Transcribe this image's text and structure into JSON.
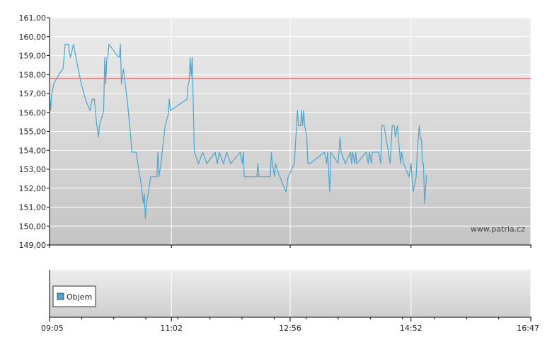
{
  "watermark": "www.patria.cz",
  "volume_legend": "Objem",
  "colors": {
    "price_line": "#4aa6d0",
    "reference_line": "#e05a5a",
    "grid": "#ffffff",
    "axis": "#000000",
    "volume_swatch": "#4aa6d0"
  },
  "chart_data": [
    {
      "type": "line",
      "title": "",
      "xlabel": "",
      "ylabel": "",
      "ylim": [
        149,
        161
      ],
      "y_ticks": [
        "149,00",
        "150,00",
        "151,00",
        "152,00",
        "153,00",
        "154,00",
        "155,00",
        "156,00",
        "157,00",
        "158,00",
        "159,00",
        "160,00",
        "161,00"
      ],
      "x_ticks": [
        "09:05",
        "11:02",
        "12:56",
        "14:52",
        "16:47"
      ],
      "x_range": [
        "09:05",
        "16:47"
      ],
      "grid": true,
      "reference_line": 157.8,
      "series": [
        {
          "points": [
            [
              "09:05",
              157.0
            ],
            [
              "09:06",
              156.1
            ],
            [
              "09:07",
              156.9
            ],
            [
              "09:09",
              157.5
            ],
            [
              "09:14",
              158.0
            ],
            [
              "09:18",
              158.3
            ],
            [
              "09:20",
              159.6
            ],
            [
              "09:23",
              159.6
            ],
            [
              "09:25",
              158.9
            ],
            [
              "09:28",
              159.6
            ],
            [
              "09:30",
              159.0
            ],
            [
              "09:35",
              157.6
            ],
            [
              "09:40",
              156.6
            ],
            [
              "09:44",
              156.1
            ],
            [
              "09:46",
              156.7
            ],
            [
              "09:48",
              156.7
            ],
            [
              "09:50",
              155.5
            ],
            [
              "09:52",
              154.7
            ],
            [
              "09:53",
              155.3
            ],
            [
              "09:57",
              156.1
            ],
            [
              "09:58",
              158.9
            ],
            [
              "09:59",
              157.5
            ],
            [
              "10:00",
              158.9
            ],
            [
              "10:01",
              158.9
            ],
            [
              "10:02",
              159.6
            ],
            [
              "10:06",
              159.3
            ],
            [
              "10:10",
              159.0
            ],
            [
              "10:12",
              158.9
            ],
            [
              "10:13",
              159.6
            ],
            [
              "10:14",
              157.5
            ],
            [
              "10:16",
              158.3
            ],
            [
              "10:20",
              156.4
            ],
            [
              "10:23",
              154.7
            ],
            [
              "10:24",
              153.9
            ],
            [
              "10:28",
              153.9
            ],
            [
              "10:33",
              152.2
            ],
            [
              "10:35",
              151.2
            ],
            [
              "10:36",
              151.7
            ],
            [
              "10:37",
              150.4
            ],
            [
              "10:38",
              151.2
            ],
            [
              "10:40",
              151.8
            ],
            [
              "10:42",
              152.6
            ],
            [
              "10:48",
              152.6
            ],
            [
              "10:49",
              153.9
            ],
            [
              "10:50",
              152.6
            ],
            [
              "10:52",
              153.3
            ],
            [
              "10:54",
              154.3
            ],
            [
              "10:56",
              155.3
            ],
            [
              "10:59",
              155.9
            ],
            [
              "11:00",
              156.7
            ],
            [
              "11:01",
              156.1
            ],
            [
              "11:17",
              156.7
            ],
            [
              "11:18",
              157.5
            ],
            [
              "11:19",
              157.6
            ],
            [
              "11:20",
              158.9
            ],
            [
              "11:21",
              157.9
            ],
            [
              "11:22",
              158.9
            ],
            [
              "11:24",
              153.9
            ],
            [
              "11:28",
              153.3
            ],
            [
              "11:32",
              153.9
            ],
            [
              "11:36",
              153.3
            ],
            [
              "11:44",
              153.9
            ],
            [
              "11:46",
              153.3
            ],
            [
              "11:48",
              153.9
            ],
            [
              "11:52",
              153.3
            ],
            [
              "11:55",
              153.9
            ],
            [
              "11:59",
              153.3
            ],
            [
              "12:08",
              153.9
            ],
            [
              "12:10",
              153.3
            ],
            [
              "12:11",
              153.9
            ],
            [
              "12:12",
              152.6
            ],
            [
              "12:24",
              152.6
            ],
            [
              "12:25",
              153.3
            ],
            [
              "12:26",
              152.6
            ],
            [
              "12:37",
              152.6
            ],
            [
              "12:38",
              153.9
            ],
            [
              "12:39",
              153.3
            ],
            [
              "12:41",
              152.6
            ],
            [
              "12:42",
              153.3
            ],
            [
              "12:44",
              152.9
            ],
            [
              "12:52",
              151.8
            ],
            [
              "12:54",
              152.6
            ],
            [
              "13:00",
              153.3
            ],
            [
              "13:03",
              156.1
            ],
            [
              "13:04",
              155.3
            ],
            [
              "13:06",
              155.3
            ],
            [
              "13:07",
              156.1
            ],
            [
              "13:08",
              155.3
            ],
            [
              "13:09",
              156.1
            ],
            [
              "13:10",
              155.3
            ],
            [
              "13:12",
              154.7
            ],
            [
              "13:13",
              153.3
            ],
            [
              "13:15",
              153.3
            ],
            [
              "13:29",
              153.9
            ],
            [
              "13:31",
              153.3
            ],
            [
              "13:32",
              153.9
            ],
            [
              "13:34",
              151.8
            ],
            [
              "13:35",
              153.9
            ],
            [
              "13:42",
              153.3
            ],
            [
              "13:44",
              154.7
            ],
            [
              "13:45",
              153.9
            ],
            [
              "13:49",
              153.3
            ],
            [
              "13:54",
              153.9
            ],
            [
              "13:55",
              153.3
            ],
            [
              "13:56",
              153.9
            ],
            [
              "13:58",
              153.3
            ],
            [
              "13:59",
              153.9
            ],
            [
              "14:00",
              153.3
            ],
            [
              "14:09",
              153.9
            ],
            [
              "14:11",
              153.3
            ],
            [
              "14:12",
              153.9
            ],
            [
              "14:14",
              153.3
            ],
            [
              "14:15",
              153.9
            ],
            [
              "14:21",
              153.9
            ],
            [
              "14:23",
              153.3
            ],
            [
              "14:24",
              155.3
            ],
            [
              "14:26",
              155.3
            ],
            [
              "14:28",
              154.7
            ],
            [
              "14:32",
              153.3
            ],
            [
              "14:34",
              155.3
            ],
            [
              "14:36",
              155.3
            ],
            [
              "14:37",
              154.7
            ],
            [
              "14:39",
              155.3
            ],
            [
              "14:42",
              153.3
            ],
            [
              "14:43",
              153.9
            ],
            [
              "14:45",
              153.3
            ],
            [
              "14:50",
              152.6
            ],
            [
              "14:52",
              153.3
            ],
            [
              "14:54",
              151.8
            ],
            [
              "14:57",
              152.6
            ],
            [
              "14:58",
              153.9
            ],
            [
              "15:00",
              155.3
            ],
            [
              "15:01",
              154.6
            ],
            [
              "15:02",
              154.6
            ],
            [
              "15:03",
              153.3
            ],
            [
              "15:04",
              153.3
            ],
            [
              "15:05",
              151.2
            ],
            [
              "15:07",
              152.7
            ]
          ]
        }
      ]
    },
    {
      "type": "bar",
      "title": "",
      "xlabel": "",
      "ylabel": "",
      "x_ticks": [
        "09:05",
        "11:02",
        "12:56",
        "14:52",
        "16:47"
      ],
      "x_range": [
        "09:05",
        "16:47"
      ],
      "grid": true,
      "legend_position": "bottom-left",
      "series": [
        {
          "name": "Objem",
          "values": []
        }
      ]
    }
  ]
}
